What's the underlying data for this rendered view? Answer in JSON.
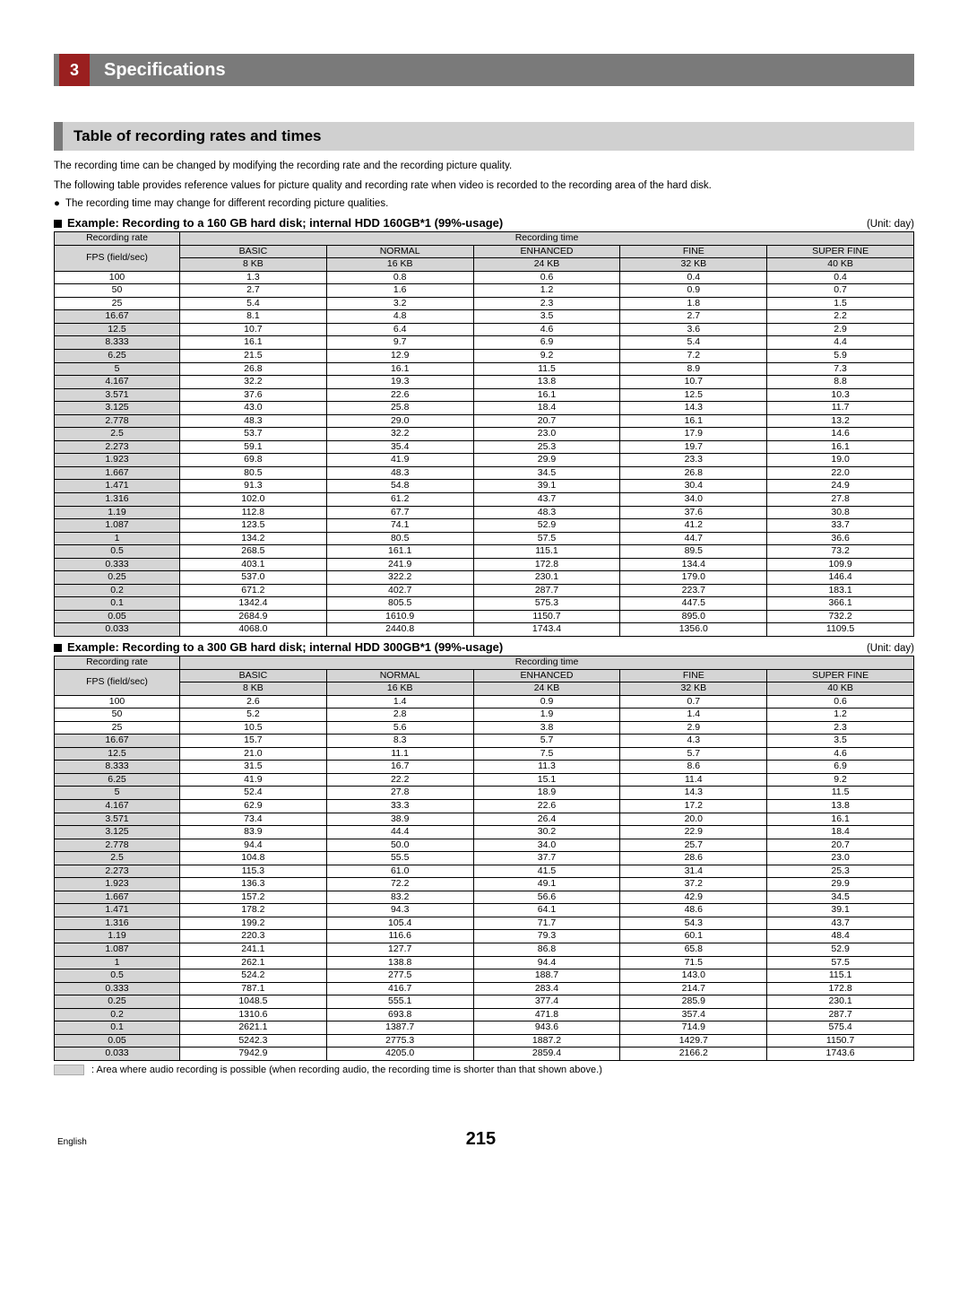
{
  "chapter": {
    "number": "3",
    "title": "Specifications"
  },
  "section_title": "Table of recording rates and times",
  "intro_lines": [
    "The recording time can be changed by modifying the recording rate and the recording picture quality.",
    "The following table provides reference values for picture quality and recording rate when video is recorded to the recording area of the hard disk."
  ],
  "bullet": "The recording time may change for different recording picture qualities.",
  "unit_label": "(Unit: day)",
  "header": {
    "rate_label": "Recording rate",
    "rate_sub": "FPS (field/sec)",
    "rec_time": "Recording time",
    "cols": [
      "BASIC",
      "NORMAL",
      "ENHANCED",
      "FINE",
      "SUPER FINE"
    ],
    "sizes": [
      "8 KB",
      "16 KB",
      "24 KB",
      "32 KB",
      "40 KB"
    ]
  },
  "tables": [
    {
      "caption": "Example: Recording to a 160 GB hard disk; internal HDD 160GB*1 (99%-usage)",
      "rows": [
        {
          "r": "100",
          "v": [
            "1.3",
            "0.8",
            "0.6",
            "0.4",
            "0.4"
          ],
          "a": 0
        },
        {
          "r": "50",
          "v": [
            "2.7",
            "1.6",
            "1.2",
            "0.9",
            "0.7"
          ],
          "a": 0
        },
        {
          "r": "25",
          "v": [
            "5.4",
            "3.2",
            "2.3",
            "1.8",
            "1.5"
          ],
          "a": 0
        },
        {
          "r": "16.67",
          "v": [
            "8.1",
            "4.8",
            "3.5",
            "2.7",
            "2.2"
          ],
          "a": 1
        },
        {
          "r": "12.5",
          "v": [
            "10.7",
            "6.4",
            "4.6",
            "3.6",
            "2.9"
          ],
          "a": 1
        },
        {
          "r": "8.333",
          "v": [
            "16.1",
            "9.7",
            "6.9",
            "5.4",
            "4.4"
          ],
          "a": 1
        },
        {
          "r": "6.25",
          "v": [
            "21.5",
            "12.9",
            "9.2",
            "7.2",
            "5.9"
          ],
          "a": 1
        },
        {
          "r": "5",
          "v": [
            "26.8",
            "16.1",
            "11.5",
            "8.9",
            "7.3"
          ],
          "a": 1
        },
        {
          "r": "4.167",
          "v": [
            "32.2",
            "19.3",
            "13.8",
            "10.7",
            "8.8"
          ],
          "a": 1
        },
        {
          "r": "3.571",
          "v": [
            "37.6",
            "22.6",
            "16.1",
            "12.5",
            "10.3"
          ],
          "a": 1
        },
        {
          "r": "3.125",
          "v": [
            "43.0",
            "25.8",
            "18.4",
            "14.3",
            "11.7"
          ],
          "a": 1
        },
        {
          "r": "2.778",
          "v": [
            "48.3",
            "29.0",
            "20.7",
            "16.1",
            "13.2"
          ],
          "a": 1
        },
        {
          "r": "2.5",
          "v": [
            "53.7",
            "32.2",
            "23.0",
            "17.9",
            "14.6"
          ],
          "a": 1
        },
        {
          "r": "2.273",
          "v": [
            "59.1",
            "35.4",
            "25.3",
            "19.7",
            "16.1"
          ],
          "a": 1
        },
        {
          "r": "1.923",
          "v": [
            "69.8",
            "41.9",
            "29.9",
            "23.3",
            "19.0"
          ],
          "a": 1
        },
        {
          "r": "1.667",
          "v": [
            "80.5",
            "48.3",
            "34.5",
            "26.8",
            "22.0"
          ],
          "a": 1
        },
        {
          "r": "1.471",
          "v": [
            "91.3",
            "54.8",
            "39.1",
            "30.4",
            "24.9"
          ],
          "a": 1
        },
        {
          "r": "1.316",
          "v": [
            "102.0",
            "61.2",
            "43.7",
            "34.0",
            "27.8"
          ],
          "a": 1
        },
        {
          "r": "1.19",
          "v": [
            "112.8",
            "67.7",
            "48.3",
            "37.6",
            "30.8"
          ],
          "a": 1
        },
        {
          "r": "1.087",
          "v": [
            "123.5",
            "74.1",
            "52.9",
            "41.2",
            "33.7"
          ],
          "a": 1
        },
        {
          "r": "1",
          "v": [
            "134.2",
            "80.5",
            "57.5",
            "44.7",
            "36.6"
          ],
          "a": 1
        },
        {
          "r": "0.5",
          "v": [
            "268.5",
            "161.1",
            "115.1",
            "89.5",
            "73.2"
          ],
          "a": 1
        },
        {
          "r": "0.333",
          "v": [
            "403.1",
            "241.9",
            "172.8",
            "134.4",
            "109.9"
          ],
          "a": 1
        },
        {
          "r": "0.25",
          "v": [
            "537.0",
            "322.2",
            "230.1",
            "179.0",
            "146.4"
          ],
          "a": 1
        },
        {
          "r": "0.2",
          "v": [
            "671.2",
            "402.7",
            "287.7",
            "223.7",
            "183.1"
          ],
          "a": 1
        },
        {
          "r": "0.1",
          "v": [
            "1342.4",
            "805.5",
            "575.3",
            "447.5",
            "366.1"
          ],
          "a": 1
        },
        {
          "r": "0.05",
          "v": [
            "2684.9",
            "1610.9",
            "1150.7",
            "895.0",
            "732.2"
          ],
          "a": 1
        },
        {
          "r": "0.033",
          "v": [
            "4068.0",
            "2440.8",
            "1743.4",
            "1356.0",
            "1109.5"
          ],
          "a": 1
        }
      ]
    },
    {
      "caption": "Example: Recording to a 300 GB hard disk; internal HDD 300GB*1 (99%-usage)",
      "rows": [
        {
          "r": "100",
          "v": [
            "2.6",
            "1.4",
            "0.9",
            "0.7",
            "0.6"
          ],
          "a": 0
        },
        {
          "r": "50",
          "v": [
            "5.2",
            "2.8",
            "1.9",
            "1.4",
            "1.2"
          ],
          "a": 0
        },
        {
          "r": "25",
          "v": [
            "10.5",
            "5.6",
            "3.8",
            "2.9",
            "2.3"
          ],
          "a": 0
        },
        {
          "r": "16.67",
          "v": [
            "15.7",
            "8.3",
            "5.7",
            "4.3",
            "3.5"
          ],
          "a": 1
        },
        {
          "r": "12.5",
          "v": [
            "21.0",
            "11.1",
            "7.5",
            "5.7",
            "4.6"
          ],
          "a": 1
        },
        {
          "r": "8.333",
          "v": [
            "31.5",
            "16.7",
            "11.3",
            "8.6",
            "6.9"
          ],
          "a": 1
        },
        {
          "r": "6.25",
          "v": [
            "41.9",
            "22.2",
            "15.1",
            "11.4",
            "9.2"
          ],
          "a": 1
        },
        {
          "r": "5",
          "v": [
            "52.4",
            "27.8",
            "18.9",
            "14.3",
            "11.5"
          ],
          "a": 1
        },
        {
          "r": "4.167",
          "v": [
            "62.9",
            "33.3",
            "22.6",
            "17.2",
            "13.8"
          ],
          "a": 1
        },
        {
          "r": "3.571",
          "v": [
            "73.4",
            "38.9",
            "26.4",
            "20.0",
            "16.1"
          ],
          "a": 1
        },
        {
          "r": "3.125",
          "v": [
            "83.9",
            "44.4",
            "30.2",
            "22.9",
            "18.4"
          ],
          "a": 1
        },
        {
          "r": "2.778",
          "v": [
            "94.4",
            "50.0",
            "34.0",
            "25.7",
            "20.7"
          ],
          "a": 1
        },
        {
          "r": "2.5",
          "v": [
            "104.8",
            "55.5",
            "37.7",
            "28.6",
            "23.0"
          ],
          "a": 1
        },
        {
          "r": "2.273",
          "v": [
            "115.3",
            "61.0",
            "41.5",
            "31.4",
            "25.3"
          ],
          "a": 1
        },
        {
          "r": "1.923",
          "v": [
            "136.3",
            "72.2",
            "49.1",
            "37.2",
            "29.9"
          ],
          "a": 1
        },
        {
          "r": "1.667",
          "v": [
            "157.2",
            "83.2",
            "56.6",
            "42.9",
            "34.5"
          ],
          "a": 1
        },
        {
          "r": "1.471",
          "v": [
            "178.2",
            "94.3",
            "64.1",
            "48.6",
            "39.1"
          ],
          "a": 1
        },
        {
          "r": "1.316",
          "v": [
            "199.2",
            "105.4",
            "71.7",
            "54.3",
            "43.7"
          ],
          "a": 1
        },
        {
          "r": "1.19",
          "v": [
            "220.3",
            "116.6",
            "79.3",
            "60.1",
            "48.4"
          ],
          "a": 1
        },
        {
          "r": "1.087",
          "v": [
            "241.1",
            "127.7",
            "86.8",
            "65.8",
            "52.9"
          ],
          "a": 1
        },
        {
          "r": "1",
          "v": [
            "262.1",
            "138.8",
            "94.4",
            "71.5",
            "57.5"
          ],
          "a": 1
        },
        {
          "r": "0.5",
          "v": [
            "524.2",
            "277.5",
            "188.7",
            "143.0",
            "115.1"
          ],
          "a": 1
        },
        {
          "r": "0.333",
          "v": [
            "787.1",
            "416.7",
            "283.4",
            "214.7",
            "172.8"
          ],
          "a": 1
        },
        {
          "r": "0.25",
          "v": [
            "1048.5",
            "555.1",
            "377.4",
            "285.9",
            "230.1"
          ],
          "a": 1
        },
        {
          "r": "0.2",
          "v": [
            "1310.6",
            "693.8",
            "471.8",
            "357.4",
            "287.7"
          ],
          "a": 1
        },
        {
          "r": "0.1",
          "v": [
            "2621.1",
            "1387.7",
            "943.6",
            "714.9",
            "575.4"
          ],
          "a": 1
        },
        {
          "r": "0.05",
          "v": [
            "5242.3",
            "2775.3",
            "1887.2",
            "1429.7",
            "1150.7"
          ],
          "a": 1
        },
        {
          "r": "0.033",
          "v": [
            "7942.9",
            "4205.0",
            "2859.4",
            "2166.2",
            "1743.6"
          ],
          "a": 1
        }
      ]
    }
  ],
  "footnote": ": Area where audio recording is possible (when recording audio, the recording time is shorter than that shown above.)",
  "footer": {
    "lang": "English",
    "page": "215"
  }
}
